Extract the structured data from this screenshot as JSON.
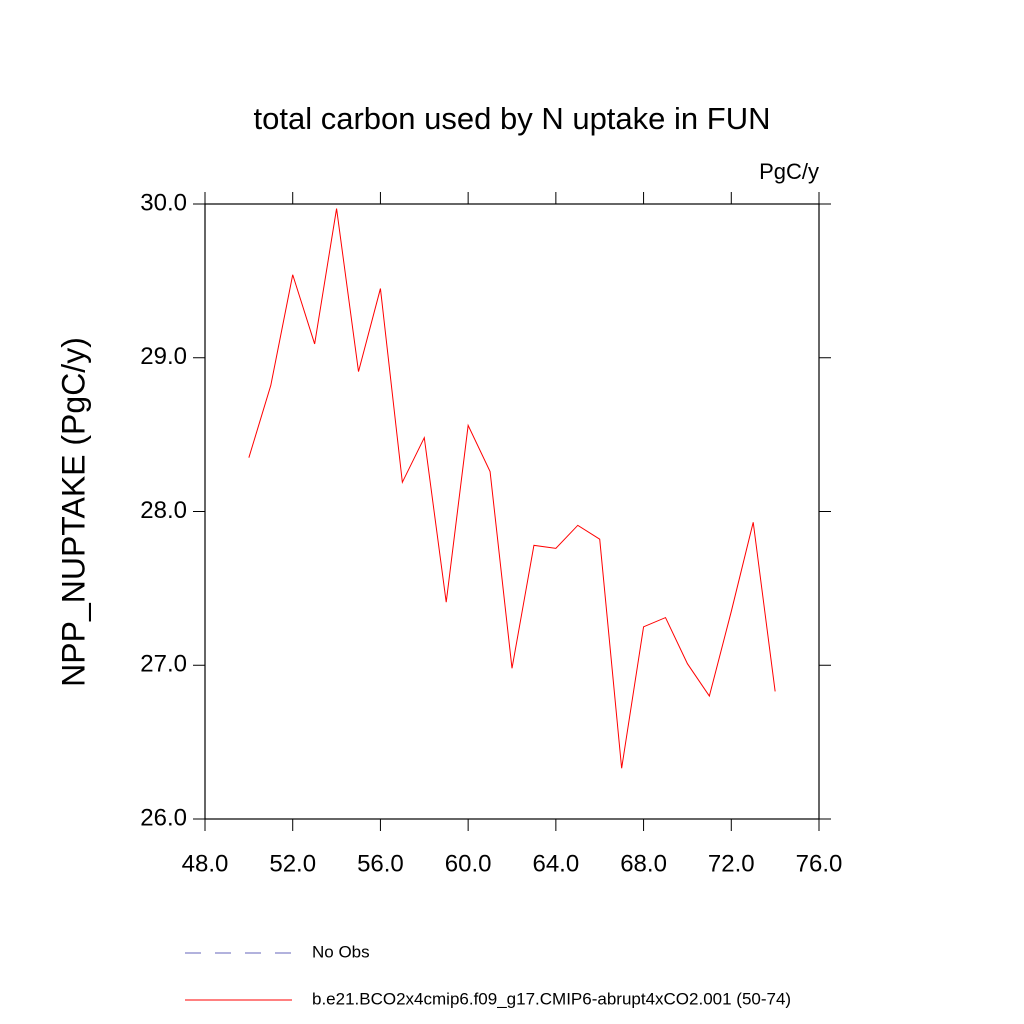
{
  "chart_data": {
    "type": "line",
    "title": "total carbon used by N uptake in FUN",
    "units_label": "PgC/y",
    "y_label": "NPP_NUPTAKE  (PgC/y)",
    "x": [
      50,
      51,
      52,
      53,
      54,
      55,
      56,
      57,
      58,
      59,
      60,
      61,
      62,
      63,
      64,
      65,
      66,
      67,
      68,
      69,
      70,
      71,
      72,
      73,
      74
    ],
    "series": [
      {
        "name": "b.e21.BCO2x4cmip6.f09_g17.CMIP6-abrupt4xCO2.001 (50-74)",
        "color": "#ff0000",
        "values": [
          28.35,
          28.82,
          29.54,
          29.09,
          29.97,
          28.91,
          29.45,
          28.19,
          28.48,
          27.41,
          28.56,
          28.26,
          26.98,
          27.78,
          27.76,
          27.91,
          27.82,
          26.33,
          27.25,
          27.31,
          27.01,
          26.8,
          27.35,
          27.93,
          26.83
        ]
      }
    ],
    "reference": {
      "name": "No Obs",
      "color": "#6666bb",
      "dashed": true
    },
    "xlim": [
      48,
      76
    ],
    "ylim": [
      26,
      30
    ],
    "xticks": [
      {
        "value": 48,
        "label": "48.0"
      },
      {
        "value": 52,
        "label": "52.0"
      },
      {
        "value": 56,
        "label": "56.0"
      },
      {
        "value": 60,
        "label": "60.0"
      },
      {
        "value": 64,
        "label": "64.0"
      },
      {
        "value": 68,
        "label": "68.0"
      },
      {
        "value": 72,
        "label": "72.0"
      },
      {
        "value": 76,
        "label": "76.0"
      }
    ],
    "yticks": [
      {
        "value": 26,
        "label": "26.0"
      },
      {
        "value": 27,
        "label": "27.0"
      },
      {
        "value": 28,
        "label": "28.0"
      },
      {
        "value": 29,
        "label": "29.0"
      },
      {
        "value": 30,
        "label": "30.0"
      }
    ]
  }
}
